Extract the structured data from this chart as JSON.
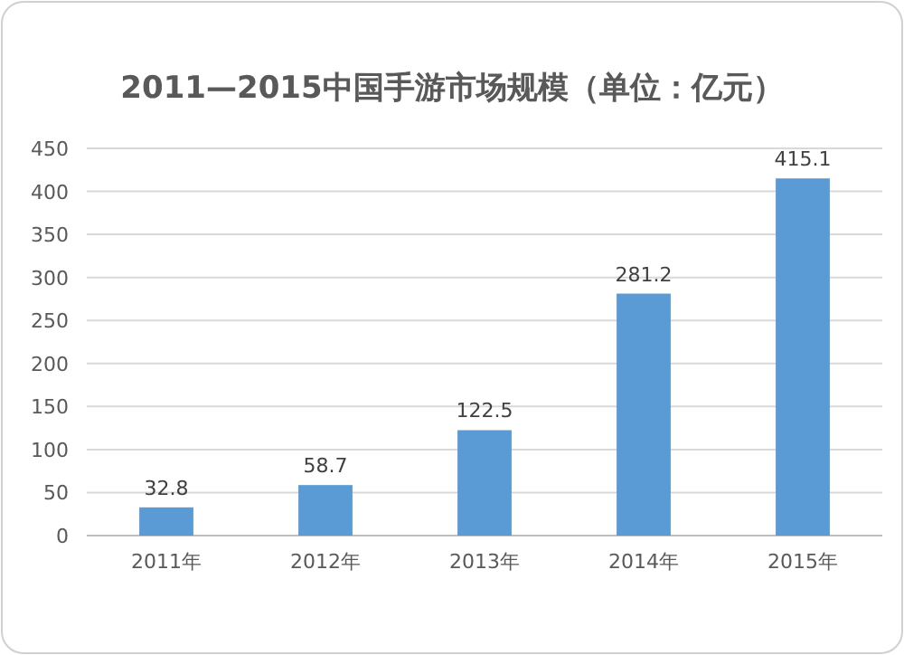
{
  "chart_data": {
    "type": "bar",
    "title": "2011—2015中国手游市场规模（单位：亿元）",
    "categories": [
      "2011年",
      "2012年",
      "2013年",
      "2014年",
      "2015年"
    ],
    "values": [
      32.8,
      58.7,
      122.5,
      281.2,
      415.1
    ],
    "color": "#5b9bd5",
    "data_labels": true,
    "grid": "y",
    "ylim": [
      0,
      450
    ],
    "yticks": [
      0,
      50,
      100,
      150,
      200,
      250,
      300,
      350,
      400,
      450
    ]
  }
}
